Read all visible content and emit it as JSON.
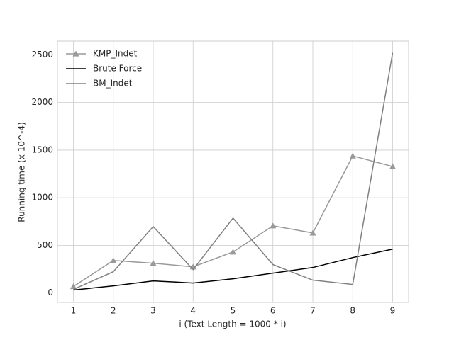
{
  "chart_data": {
    "type": "line",
    "xlabel": "i (Text Length = 1000 * i)",
    "ylabel": "Running time (x 10^-4)",
    "x": [
      1,
      2,
      3,
      4,
      5,
      6,
      7,
      8,
      9
    ],
    "series": [
      {
        "name": "KMP_Indet",
        "color": "#999999",
        "marker": "triangle",
        "values": [
          67,
          341,
          312,
          274,
          430,
          705,
          630,
          1439,
          1328
        ]
      },
      {
        "name": "Brute Force",
        "color": "#000000",
        "values": [
          30,
          74,
          126,
          104,
          148,
          208,
          267,
          371,
          460
        ]
      },
      {
        "name": "BM_Indet",
        "color": "#808080",
        "values": [
          37,
          223,
          697,
          245,
          786,
          297,
          134,
          89,
          2522
        ]
      }
    ],
    "xlim": [
      0.6,
      9.4
    ],
    "ylim": [
      -100,
      2645
    ],
    "xticks": [
      1,
      2,
      3,
      4,
      5,
      6,
      7,
      8,
      9
    ],
    "yticks": [
      0,
      500,
      1000,
      1500,
      2000,
      2500
    ],
    "grid": true,
    "legend": "upper left"
  }
}
